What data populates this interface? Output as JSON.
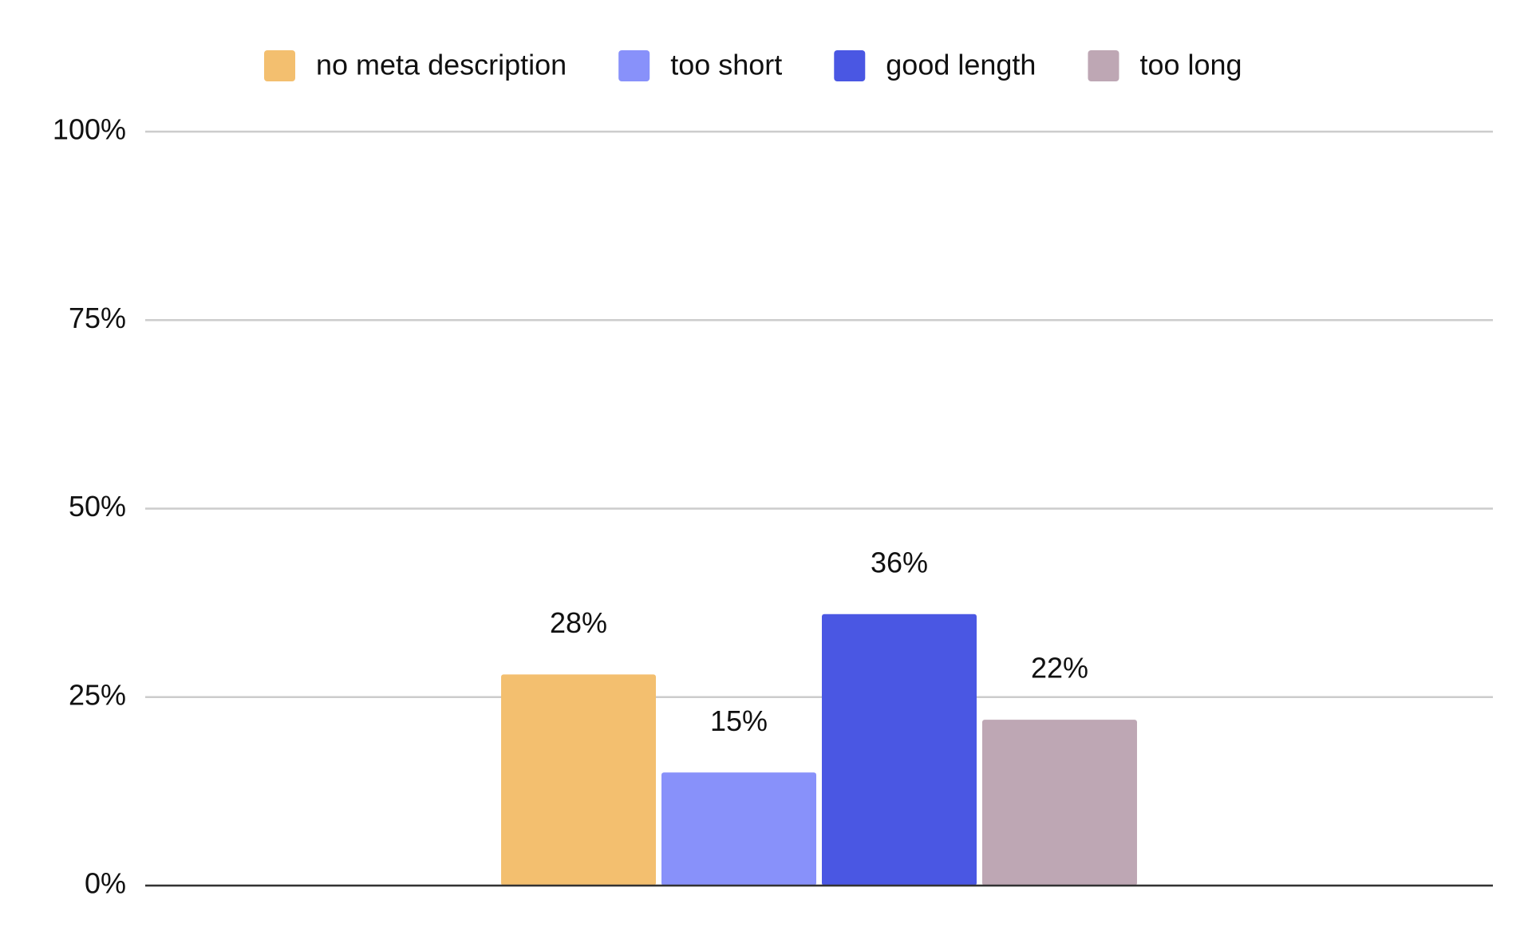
{
  "chart_data": {
    "type": "bar",
    "categories": [
      null
    ],
    "series": [
      {
        "name": "no meta description",
        "color": "#f3bf6f",
        "values": [
          28
        ],
        "value_labels": [
          "28%"
        ]
      },
      {
        "name": "too short",
        "color": "#8891fa",
        "values": [
          15
        ],
        "value_labels": [
          "15%"
        ]
      },
      {
        "name": "good length",
        "color": "#4a57e3",
        "values": [
          36
        ],
        "value_labels": [
          "36%"
        ]
      },
      {
        "name": "too long",
        "color": "#bea7b4",
        "values": [
          22
        ],
        "value_labels": [
          "22%"
        ]
      }
    ],
    "ylim": [
      0,
      100
    ],
    "yticks": [
      {
        "value": 0,
        "label": "0%"
      },
      {
        "value": 25,
        "label": "25%"
      },
      {
        "value": 50,
        "label": "50%"
      },
      {
        "value": 75,
        "label": "75%"
      },
      {
        "value": 100,
        "label": "100%"
      }
    ],
    "grid": true,
    "legend": "top"
  }
}
